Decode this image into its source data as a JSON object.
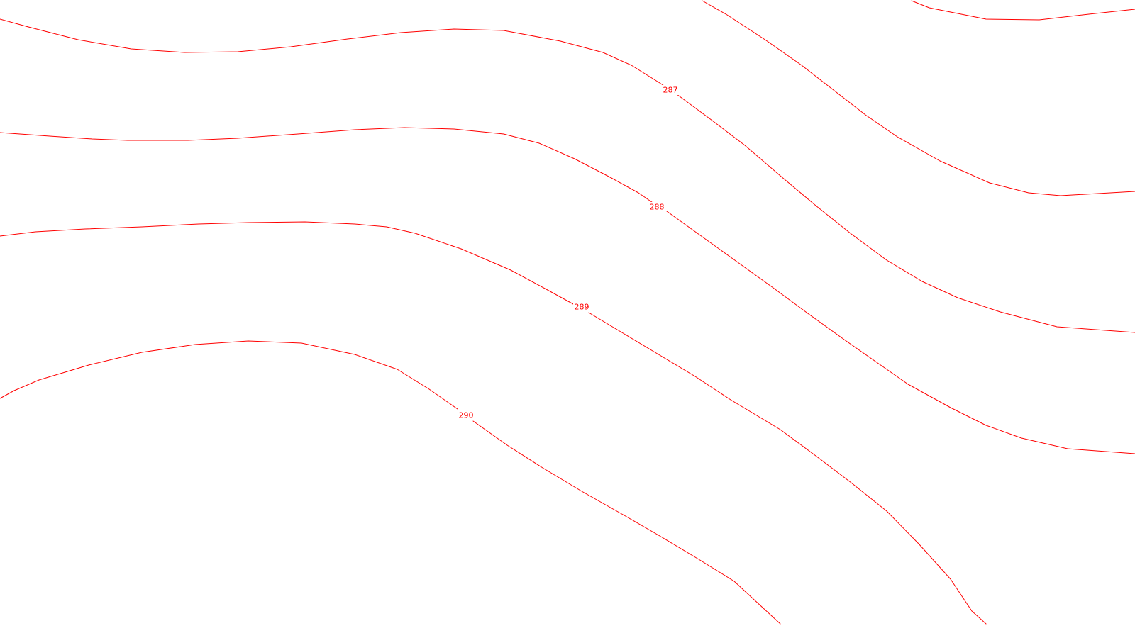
{
  "map": {
    "line_color": "#ff0000",
    "background": "#ffffff",
    "contours": [
      {
        "id": "unlabeled-top-right",
        "label": ""
      },
      {
        "id": "line-287",
        "label": "287"
      },
      {
        "id": "line-288",
        "label": "288"
      },
      {
        "id": "line-289",
        "label": "289"
      },
      {
        "id": "line-290",
        "label": "290"
      },
      {
        "id": "unlabeled-top-left",
        "label": ""
      }
    ]
  }
}
